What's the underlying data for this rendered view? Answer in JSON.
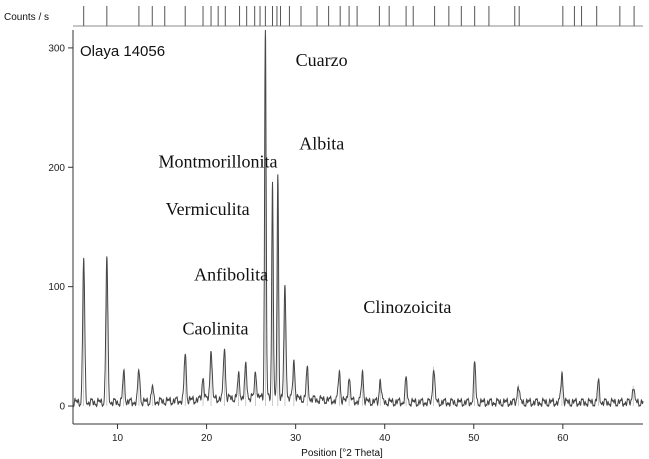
{
  "chart_data": {
    "type": "line",
    "title": "",
    "sample_label": "Olaya 14056",
    "ylabel": "Counts / s",
    "xlabel": "Position [°2 Theta]",
    "xlim": [
      5,
      69
    ],
    "ylim": [
      -5,
      315
    ],
    "x_ticks": [
      10,
      20,
      30,
      40,
      50,
      60
    ],
    "y_ticks": [
      0,
      100,
      200,
      300
    ],
    "grid": false,
    "reference_marks": [
      6.2,
      8.8,
      12.4,
      13.9,
      15.3,
      17.6,
      19.6,
      20.5,
      21.3,
      22.1,
      23.7,
      24.5,
      25.4,
      26.0,
      26.6,
      27.4,
      27.9,
      28.3,
      29.3,
      30.6,
      32.4,
      33.7,
      35.0,
      36.0,
      36.9,
      39.4,
      40.5,
      42.4,
      43.2,
      45.6,
      47.2,
      48.6,
      50.1,
      51.7,
      54.6,
      55.1,
      60.0,
      61.3,
      62.1,
      63.8,
      66.4,
      68.0
    ],
    "peaks": [
      {
        "x": 6.2,
        "y": 122
      },
      {
        "x": 8.8,
        "y": 123
      },
      {
        "x": 10.7,
        "y": 28
      },
      {
        "x": 12.4,
        "y": 30
      },
      {
        "x": 13.9,
        "y": 15
      },
      {
        "x": 17.6,
        "y": 43
      },
      {
        "x": 19.6,
        "y": 22
      },
      {
        "x": 20.5,
        "y": 46
      },
      {
        "x": 22.0,
        "y": 46
      },
      {
        "x": 23.6,
        "y": 22
      },
      {
        "x": 24.4,
        "y": 30
      },
      {
        "x": 25.5,
        "y": 25
      },
      {
        "x": 26.6,
        "y": 315
      },
      {
        "x": 27.4,
        "y": 185
      },
      {
        "x": 28.0,
        "y": 188
      },
      {
        "x": 28.8,
        "y": 95
      },
      {
        "x": 29.8,
        "y": 35
      },
      {
        "x": 31.3,
        "y": 28
      },
      {
        "x": 34.9,
        "y": 28
      },
      {
        "x": 36.0,
        "y": 24
      },
      {
        "x": 37.5,
        "y": 28
      },
      {
        "x": 39.5,
        "y": 22
      },
      {
        "x": 42.4,
        "y": 22
      },
      {
        "x": 45.5,
        "y": 33
      },
      {
        "x": 50.1,
        "y": 35
      },
      {
        "x": 55.0,
        "y": 18
      },
      {
        "x": 59.9,
        "y": 28
      },
      {
        "x": 64.0,
        "y": 20
      },
      {
        "x": 67.9,
        "y": 17
      }
    ],
    "annotations": [
      {
        "text": "Cuarzo",
        "x": 30.0,
        "y": 285
      },
      {
        "text": "Albita",
        "x": 30.4,
        "y": 215
      },
      {
        "text": "Montmorillonita",
        "x": 14.6,
        "y": 200
      },
      {
        "text": "Vermiculita",
        "x": 15.4,
        "y": 160
      },
      {
        "text": "Anfibolita",
        "x": 18.6,
        "y": 105
      },
      {
        "text": "Caolinita",
        "x": 17.3,
        "y": 60
      },
      {
        "text": "Clinozoicita",
        "x": 37.6,
        "y": 78
      }
    ]
  }
}
